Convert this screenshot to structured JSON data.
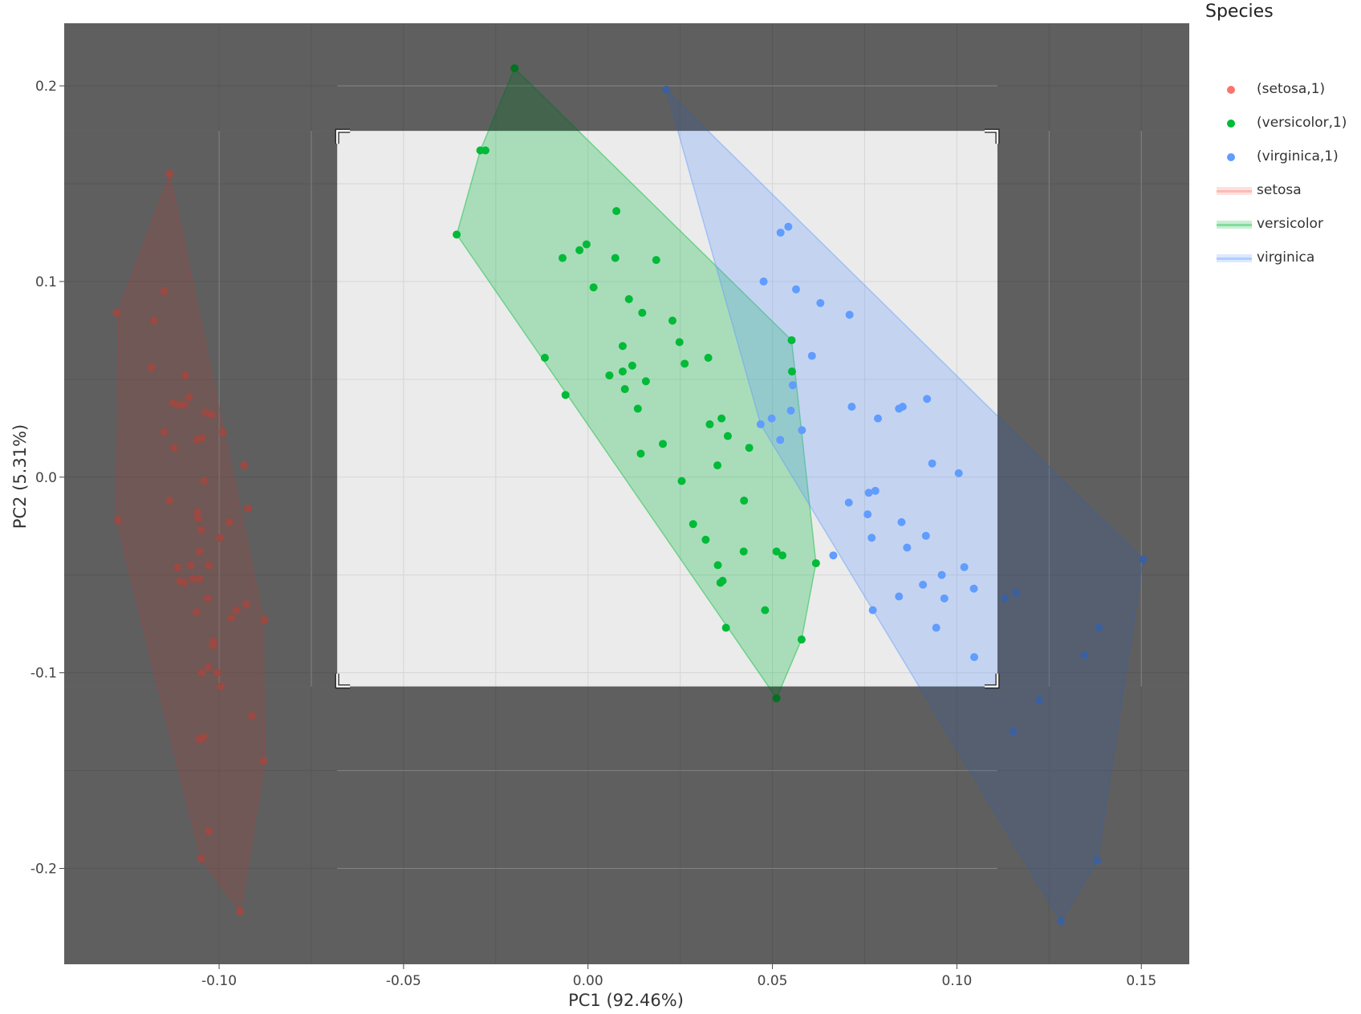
{
  "chart_data": {
    "type": "scatter",
    "xlabel": "PC1 (92.46%)",
    "ylabel": "PC2 (5.31%)",
    "xlim": [
      -0.142,
      0.163
    ],
    "ylim": [
      -0.249,
      0.232
    ],
    "xticks": [
      -0.1,
      -0.05,
      0,
      0.05,
      0.1,
      0.15
    ],
    "xtick_labels": [
      "-0.10",
      "-0.05",
      "0.00",
      "0.05",
      "0.10",
      "0.15"
    ],
    "yticks": [
      -0.2,
      -0.1,
      0,
      0.1,
      0.2
    ],
    "ytick_labels": [
      "-0.2",
      "-0.1",
      "0.0",
      "0.1",
      "0.2"
    ],
    "grid": true,
    "legend_position": "right",
    "legend_title": "Species",
    "selection_box": {
      "x": [
        -0.068,
        0.111
      ],
      "y": [
        -0.107,
        0.177
      ]
    },
    "series": [
      {
        "name": "(setosa,1)",
        "kind": "points",
        "color": "#f8766d",
        "x": [
          -0.1134,
          -0.1149,
          -0.1278,
          -0.1177,
          -0.1183,
          -0.1092,
          -0.1125,
          -0.1112,
          -0.1082,
          -0.1094,
          -0.1036,
          -0.1021,
          -0.1149,
          -0.106,
          -0.1046,
          -0.099,
          -0.1122,
          -0.104,
          -0.0932,
          -0.1134,
          -0.1059,
          -0.1048,
          -0.1057,
          -0.1274,
          -0.1054,
          -0.0922,
          -0.1077,
          -0.0998,
          -0.0972,
          -0.1028,
          -0.1112,
          -0.1106,
          -0.1053,
          -0.1095,
          -0.1071,
          -0.1061,
          -0.1031,
          -0.0953,
          -0.0926,
          -0.0967,
          -0.1017,
          -0.0877,
          -0.1016,
          -0.1029,
          -0.1005,
          -0.1048,
          -0.0996,
          -0.0911,
          -0.1043,
          -0.1054,
          -0.1028,
          -0.088,
          -0.1049,
          -0.0943
        ],
        "y": [
          0.155,
          0.095,
          0.084,
          0.08,
          0.056,
          0.052,
          0.038,
          0.037,
          0.041,
          0.037,
          0.033,
          0.032,
          0.023,
          0.019,
          0.02,
          0.023,
          0.015,
          -0.002,
          0.006,
          -0.012,
          -0.018,
          -0.027,
          -0.021,
          -0.022,
          -0.038,
          -0.016,
          -0.045,
          -0.031,
          -0.023,
          -0.045,
          -0.046,
          -0.053,
          -0.052,
          -0.054,
          -0.052,
          -0.069,
          -0.062,
          -0.068,
          -0.065,
          -0.072,
          -0.086,
          -0.073,
          -0.084,
          -0.097,
          -0.1,
          -0.1,
          -0.107,
          -0.122,
          -0.133,
          -0.134,
          -0.181,
          -0.145,
          -0.195,
          -0.222
        ]
      },
      {
        "name": "(versicolor,1)",
        "kind": "points",
        "color": "#00ba38",
        "x": [
          -0.0199,
          -0.0292,
          -0.0278,
          -0.0356,
          0.0077,
          -0.0004,
          -0.0023,
          -0.0069,
          0.0074,
          0.0185,
          0.0015,
          0.0111,
          0.0147,
          0.0229,
          0.0248,
          0.0094,
          0.0262,
          0.0326,
          0.012,
          0.0094,
          0.0157,
          -0.0117,
          0.0058,
          0.01,
          -0.0061,
          0.0135,
          0.0362,
          0.033,
          0.0379,
          0.0143,
          0.0203,
          0.0351,
          0.0437,
          0.0254,
          0.0423,
          0.0285,
          0.0319,
          0.0422,
          0.0352,
          0.0359,
          0.0365,
          0.0374,
          0.048,
          0.0511,
          0.0527,
          0.0552,
          0.0579,
          0.0553,
          0.0511,
          0.0618
        ],
        "y": [
          0.209,
          0.167,
          0.167,
          0.124,
          0.136,
          0.119,
          0.116,
          0.112,
          0.112,
          0.111,
          0.097,
          0.091,
          0.084,
          0.08,
          0.069,
          0.067,
          0.058,
          0.061,
          0.057,
          0.054,
          0.049,
          0.061,
          0.052,
          0.045,
          0.042,
          0.035,
          0.03,
          0.027,
          0.021,
          0.012,
          0.017,
          0.006,
          0.015,
          -0.002,
          -0.012,
          -0.024,
          -0.032,
          -0.038,
          -0.045,
          -0.054,
          -0.053,
          -0.077,
          -0.068,
          -0.113,
          -0.04,
          0.07,
          -0.083,
          0.054,
          -0.038,
          -0.044
        ]
      },
      {
        "name": "(virginica,1)",
        "kind": "points",
        "color": "#619cff",
        "x": [
          0.0212,
          0.0522,
          0.0543,
          0.0476,
          0.0564,
          0.063,
          0.0709,
          0.0607,
          0.0555,
          0.0715,
          0.0843,
          0.0853,
          0.0919,
          0.0786,
          0.055,
          0.0468,
          0.0498,
          0.0521,
          0.058,
          0.0933,
          0.1005,
          0.0761,
          0.0779,
          0.0707,
          0.0758,
          0.085,
          0.0769,
          0.0916,
          0.0865,
          0.0665,
          0.102,
          0.1046,
          0.0959,
          0.0908,
          0.0966,
          0.0843,
          0.0772,
          0.0944,
          0.1047,
          0.113,
          0.1161,
          0.1505,
          0.1385,
          0.1346,
          0.1223,
          0.1153,
          0.1381,
          0.1282
        ],
        "y": [
          0.198,
          0.125,
          0.128,
          0.1,
          0.096,
          0.089,
          0.083,
          0.062,
          0.047,
          0.036,
          0.035,
          0.036,
          0.04,
          0.03,
          0.034,
          0.027,
          0.03,
          0.019,
          0.024,
          0.007,
          0.002,
          -0.008,
          -0.007,
          -0.013,
          -0.019,
          -0.023,
          -0.031,
          -0.03,
          -0.036,
          -0.04,
          -0.046,
          -0.057,
          -0.05,
          -0.055,
          -0.062,
          -0.061,
          -0.068,
          -0.077,
          -0.092,
          -0.062,
          -0.059,
          -0.042,
          -0.077,
          -0.091,
          -0.114,
          -0.13,
          -0.196,
          -0.227
        ]
      },
      {
        "name": "setosa",
        "kind": "hull",
        "color": "#f8766d",
        "x": [
          -0.1134,
          -0.088,
          -0.0877,
          -0.0943,
          -0.1049,
          -0.1278,
          -0.1274
        ],
        "y": [
          0.155,
          -0.073,
          -0.145,
          -0.222,
          -0.195,
          -0.022,
          0.084
        ]
      },
      {
        "name": "versicolor",
        "kind": "hull",
        "color": "#00ba38",
        "x": [
          -0.0199,
          0.0552,
          0.0618,
          0.0579,
          0.0511,
          -0.0356,
          -0.0292
        ],
        "y": [
          0.209,
          0.07,
          -0.044,
          -0.083,
          -0.113,
          0.124,
          0.167
        ]
      },
      {
        "name": "virginica",
        "kind": "hull",
        "color": "#619cff",
        "x": [
          0.0212,
          0.1505,
          0.1381,
          0.1282,
          0.0468
        ],
        "y": [
          0.198,
          -0.042,
          -0.196,
          -0.227,
          0.027
        ]
      }
    ]
  }
}
